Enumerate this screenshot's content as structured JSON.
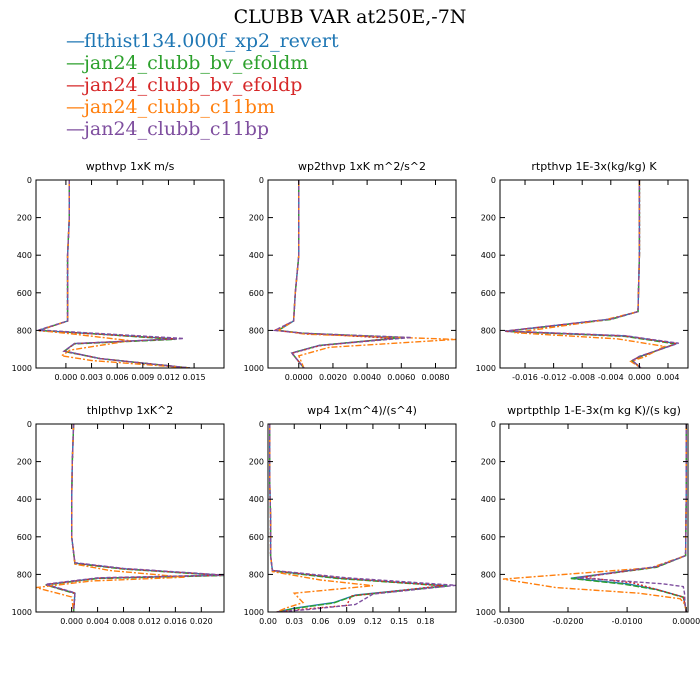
{
  "title": "CLUBB VAR at250E,-7N",
  "colors": {
    "blue": "#1f77b4",
    "green": "#2ca02c",
    "red": "#d62728",
    "orange": "#ff7f0e",
    "purple": "#7f4f9f"
  },
  "legend": [
    {
      "name": "flthist134.000f_xp2_revert",
      "color": "#1f77b4"
    },
    {
      "name": "jan24_clubb_bv_efoldm",
      "color": "#2ca02c"
    },
    {
      "name": "jan24_clubb_bv_efoldp",
      "color": "#d62728"
    },
    {
      "name": "jan24_clubb_c11bm",
      "color": "#ff7f0e"
    },
    {
      "name": "jan24_clubb_c11bp",
      "color": "#7f4f9f"
    }
  ],
  "chart_data": [
    {
      "type": "line",
      "title": "wpthvp   1xK m/s",
      "xlim": [
        -0.0035,
        0.0185
      ],
      "ylim": [
        1000,
        0
      ],
      "xticks": [
        "0.000",
        "0.003",
        "0.006",
        "0.009",
        "0.012",
        "0.015"
      ],
      "xtick_values": [
        0,
        0.003,
        0.006,
        0.009,
        0.012,
        0.015
      ],
      "yticks": [
        0,
        200,
        400,
        600,
        800,
        1000
      ],
      "series": [
        {
          "color": "#1f77b4",
          "x": [
            0.0004,
            0.0004,
            0.0002,
            0.0002,
            -0.0032,
            0.004,
            0.013,
            0.001,
            -0.0002,
            0.004,
            0.0145
          ],
          "y": [
            0,
            200,
            400,
            750,
            800,
            820,
            845,
            870,
            910,
            950,
            1000
          ]
        },
        {
          "color": "#2ca02c",
          "x": [
            0.0004,
            0.0004,
            0.0002,
            0.0002,
            -0.0032,
            0.004,
            0.0128,
            0.001,
            -0.0002,
            0.004,
            0.0145
          ],
          "y": [
            0,
            200,
            400,
            750,
            800,
            820,
            848,
            872,
            912,
            950,
            1000
          ]
        },
        {
          "color": "#d62728",
          "x": [
            0.0004,
            0.0004,
            0.0002,
            0.0002,
            -0.0032,
            0.0045,
            0.013,
            0.001,
            -0.0002,
            0.004,
            0.0145
          ],
          "y": [
            0,
            200,
            400,
            750,
            802,
            822,
            845,
            870,
            910,
            950,
            1000
          ]
        },
        {
          "color": "#ff7f0e",
          "x": [
            0.0004,
            0.0004,
            0.0002,
            0.0002,
            -0.0032,
            0.001,
            0.0075,
            0.0005,
            -0.0005,
            0.003,
            0.0145
          ],
          "y": [
            0,
            200,
            400,
            750,
            800,
            820,
            855,
            905,
            935,
            960,
            1000
          ]
        },
        {
          "color": "#7f4f9f",
          "x": [
            0.0004,
            0.0004,
            0.0002,
            0.0002,
            -0.0032,
            0.0045,
            0.0138,
            0.001,
            -0.0002,
            0.004,
            0.0145
          ],
          "y": [
            0,
            200,
            400,
            750,
            798,
            818,
            843,
            870,
            910,
            950,
            1000
          ]
        }
      ]
    },
    {
      "type": "line",
      "title": "wp2thvp   1xK m^2/s^2",
      "xlim": [
        -0.0018,
        0.0092
      ],
      "ylim": [
        1000,
        0
      ],
      "xticks": [
        "0.0000",
        "0.0020",
        "0.0040",
        "0.0060",
        "0.0080"
      ],
      "xtick_values": [
        0,
        0.002,
        0.004,
        0.006,
        0.008
      ],
      "yticks": [
        0,
        200,
        400,
        600,
        800,
        1000
      ],
      "series": [
        {
          "color": "#1f77b4",
          "x": [
            0,
            0,
            0,
            -0.0002,
            -0.0003,
            -0.0012,
            0.0002,
            0.0058,
            0.0012,
            -0.0004,
            0.0003
          ],
          "y": [
            0,
            200,
            400,
            600,
            750,
            800,
            815,
            840,
            880,
            920,
            1000
          ]
        },
        {
          "color": "#2ca02c",
          "x": [
            0,
            0,
            0,
            -0.0002,
            -0.0003,
            -0.0012,
            0.0002,
            0.0062,
            0.0012,
            -0.0004,
            0.0003
          ],
          "y": [
            0,
            200,
            400,
            600,
            750,
            800,
            815,
            838,
            880,
            920,
            1000
          ]
        },
        {
          "color": "#d62728",
          "x": [
            0,
            0,
            0,
            -0.0002,
            -0.0003,
            -0.0014,
            0.0002,
            0.0055,
            0.0012,
            -0.0004,
            0.0003
          ],
          "y": [
            0,
            200,
            400,
            600,
            750,
            800,
            815,
            842,
            882,
            922,
            1000
          ]
        },
        {
          "color": "#ff7f0e",
          "x": [
            0,
            0,
            0,
            -0.0002,
            -0.0003,
            -0.0012,
            0.0004,
            0.0092,
            0.0018,
            0.0,
            0.0003
          ],
          "y": [
            0,
            200,
            400,
            600,
            750,
            800,
            820,
            848,
            890,
            935,
            1000
          ]
        },
        {
          "color": "#7f4f9f",
          "x": [
            0,
            0,
            0,
            -0.0002,
            -0.0003,
            -0.0014,
            0.0002,
            0.0066,
            0.0012,
            -0.0004,
            0.0003
          ],
          "y": [
            0,
            200,
            400,
            600,
            750,
            800,
            815,
            838,
            880,
            920,
            1000
          ]
        }
      ]
    },
    {
      "type": "line",
      "title": "rtpthvp   1E-3x(kg/kg) K",
      "xlim": [
        -0.0195,
        0.0068
      ],
      "ylim": [
        1000,
        0
      ],
      "xticks": [
        "-0.016",
        "-0.012",
        "-0.008",
        "-0.004",
        "0.000",
        "0.004"
      ],
      "xtick_values": [
        -0.016,
        -0.012,
        -0.008,
        -0.004,
        0,
        0.004
      ],
      "yticks": [
        0,
        200,
        400,
        600,
        800,
        1000
      ],
      "series": [
        {
          "color": "#1f77b4",
          "x": [
            0,
            0,
            0,
            -0.0002,
            -0.004,
            -0.0188,
            -0.002,
            0.0052,
            0.0,
            -0.001,
            0.0002
          ],
          "y": [
            0,
            200,
            400,
            700,
            740,
            805,
            830,
            870,
            940,
            960,
            1000
          ]
        },
        {
          "color": "#2ca02c",
          "x": [
            0,
            0,
            0,
            -0.0002,
            -0.004,
            -0.0188,
            -0.002,
            0.005,
            0.0,
            -0.001,
            0.0002
          ],
          "y": [
            0,
            200,
            400,
            700,
            742,
            805,
            832,
            872,
            942,
            962,
            1000
          ]
        },
        {
          "color": "#d62728",
          "x": [
            0,
            0,
            0,
            -0.0002,
            -0.004,
            -0.0188,
            -0.002,
            0.0052,
            0.0,
            -0.001,
            0.0002
          ],
          "y": [
            0,
            200,
            400,
            700,
            740,
            805,
            830,
            870,
            940,
            960,
            1000
          ]
        },
        {
          "color": "#ff7f0e",
          "x": [
            0,
            0,
            0,
            -0.0002,
            -0.005,
            -0.0175,
            -0.003,
            0.0035,
            0.0008,
            -0.0012,
            0.0002
          ],
          "y": [
            0,
            200,
            400,
            700,
            745,
            812,
            845,
            885,
            940,
            965,
            1000
          ]
        },
        {
          "color": "#7f4f9f",
          "x": [
            0,
            0,
            0,
            -0.0002,
            -0.004,
            -0.0188,
            -0.002,
            0.0055,
            0.0,
            -0.001,
            0.0002
          ],
          "y": [
            0,
            200,
            400,
            700,
            740,
            803,
            828,
            868,
            938,
            960,
            1000
          ]
        }
      ]
    },
    {
      "type": "line",
      "title": "thlpthvp   1xK^2",
      "xlim": [
        -0.0055,
        0.0235
      ],
      "ylim": [
        1000,
        0
      ],
      "xticks": [
        "0.000",
        "0.004",
        "0.008",
        "0.012",
        "0.016",
        "0.020"
      ],
      "xtick_values": [
        0,
        0.004,
        0.008,
        0.012,
        0.016,
        0.02
      ],
      "yticks": [
        0,
        200,
        400,
        600,
        800,
        1000
      ],
      "series": [
        {
          "color": "#1f77b4",
          "x": [
            0.0003,
            0.0001,
            0,
            0,
            0.0005,
            0.008,
            0.0235,
            0.004,
            -0.004,
            0.0005,
            0.0003
          ],
          "y": [
            0,
            200,
            400,
            600,
            740,
            770,
            805,
            820,
            855,
            900,
            1000
          ]
        },
        {
          "color": "#2ca02c",
          "x": [
            0.0003,
            0.0001,
            0,
            0,
            0.0005,
            0.008,
            0.0235,
            0.004,
            -0.004,
            0.0005,
            0.0003
          ],
          "y": [
            0,
            200,
            400,
            600,
            742,
            772,
            806,
            822,
            856,
            902,
            1000
          ]
        },
        {
          "color": "#d62728",
          "x": [
            0.0003,
            0.0001,
            0,
            0,
            0.0005,
            0.008,
            0.0235,
            0.004,
            -0.004,
            0.0005,
            0.0003
          ],
          "y": [
            0,
            200,
            400,
            600,
            740,
            770,
            805,
            820,
            855,
            900,
            1000
          ]
        },
        {
          "color": "#ff7f0e",
          "x": [
            0.0003,
            0.0001,
            0,
            0,
            0.0005,
            0.006,
            0.0175,
            0.003,
            -0.0055,
            0.0,
            0.0003
          ],
          "y": [
            0,
            200,
            400,
            600,
            745,
            780,
            815,
            835,
            870,
            920,
            1000
          ]
        },
        {
          "color": "#7f4f9f",
          "x": [
            0.0003,
            0.0001,
            0,
            0,
            0.0005,
            0.008,
            0.0235,
            0.004,
            -0.004,
            0.0005,
            0.0003
          ],
          "y": [
            0,
            200,
            400,
            600,
            738,
            768,
            803,
            818,
            852,
            898,
            1000
          ]
        }
      ]
    },
    {
      "type": "line",
      "title": "wp4   1x(m^4)/(s^4)",
      "xlim": [
        0,
        0.215
      ],
      "ylim": [
        1000,
        0
      ],
      "xticks": [
        "0.00",
        "0.03",
        "0.06",
        "0.09",
        "0.12",
        "0.15",
        "0.18"
      ],
      "xtick_values": [
        0,
        0.03,
        0.06,
        0.09,
        0.12,
        0.15,
        0.18
      ],
      "yticks": [
        0,
        200,
        400,
        600,
        800,
        1000
      ],
      "series": [
        {
          "color": "#1f77b4",
          "x": [
            0.002,
            0.002,
            0.003,
            0.003,
            0.005,
            0.08,
            0.205,
            0.1,
            0.075,
            0.03,
            0.01
          ],
          "y": [
            0,
            300,
            500,
            700,
            780,
            820,
            860,
            910,
            950,
            980,
            1000
          ]
        },
        {
          "color": "#2ca02c",
          "x": [
            0.002,
            0.002,
            0.003,
            0.003,
            0.005,
            0.08,
            0.205,
            0.1,
            0.075,
            0.03,
            0.01
          ],
          "y": [
            0,
            300,
            500,
            700,
            782,
            822,
            862,
            912,
            952,
            982,
            1000
          ]
        },
        {
          "color": "#d62728",
          "x": [
            0.002,
            0.002,
            0.003,
            0.003,
            0.005,
            0.085,
            0.2,
            0.095,
            0.09,
            0.04,
            0.01
          ],
          "y": [
            0,
            300,
            500,
            700,
            780,
            820,
            860,
            915,
            965,
            985,
            1000
          ]
        },
        {
          "color": "#ff7f0e",
          "x": [
            0.002,
            0.002,
            0.003,
            0.003,
            0.005,
            0.06,
            0.12,
            0.03,
            0.04,
            0.02,
            0.01
          ],
          "y": [
            0,
            300,
            500,
            700,
            785,
            830,
            860,
            900,
            950,
            980,
            1000
          ]
        },
        {
          "color": "#7f4f9f",
          "x": [
            0.002,
            0.002,
            0.003,
            0.003,
            0.005,
            0.09,
            0.215,
            0.12,
            0.1,
            0.05,
            0.01
          ],
          "y": [
            0,
            300,
            500,
            700,
            778,
            818,
            858,
            905,
            960,
            985,
            1000
          ]
        }
      ]
    },
    {
      "type": "line",
      "title": "wprtpthlp   1-E-3x(m kg K)/(s kg)",
      "xlim": [
        -0.0315,
        0.0003
      ],
      "ylim": [
        1000,
        0
      ],
      "xticks": [
        "-0.0300",
        "-0.0200",
        "-0.0100",
        "0.0000"
      ],
      "xtick_values": [
        -0.03,
        -0.02,
        -0.01,
        0
      ],
      "yticks": [
        0,
        200,
        400,
        600,
        800,
        1000
      ],
      "series": [
        {
          "color": "#1f77b4",
          "x": [
            0,
            0,
            0,
            -0.0001,
            -0.005,
            -0.0195,
            -0.01,
            -0.005,
            -0.0005,
            -0.0002,
            0
          ],
          "y": [
            0,
            200,
            400,
            700,
            760,
            820,
            850,
            880,
            920,
            960,
            1000
          ]
        },
        {
          "color": "#2ca02c",
          "x": [
            0,
            0,
            0,
            -0.0001,
            -0.005,
            -0.0195,
            -0.0105,
            -0.005,
            -0.0005,
            -0.0002,
            0
          ],
          "y": [
            0,
            200,
            400,
            700,
            762,
            822,
            852,
            882,
            922,
            962,
            1000
          ]
        },
        {
          "color": "#d62728",
          "x": [
            0,
            0,
            0,
            -0.0001,
            -0.005,
            -0.0175,
            -0.009,
            -0.005,
            -0.0005,
            -0.0002,
            0
          ],
          "y": [
            0,
            200,
            400,
            700,
            760,
            815,
            845,
            880,
            920,
            960,
            1000
          ]
        },
        {
          "color": "#ff7f0e",
          "x": [
            0,
            0,
            0,
            -0.0001,
            -0.006,
            -0.031,
            -0.022,
            -0.008,
            -0.001,
            -0.0002,
            0
          ],
          "y": [
            0,
            200,
            400,
            700,
            765,
            825,
            870,
            900,
            930,
            960,
            1000
          ]
        },
        {
          "color": "#7f4f9f",
          "x": [
            0,
            0,
            0,
            -0.0001,
            -0.005,
            -0.0185,
            -0.004,
            -0.0005,
            -0.0003,
            -0.0002,
            0
          ],
          "y": [
            0,
            200,
            400,
            700,
            758,
            818,
            850,
            865,
            900,
            950,
            1000
          ]
        }
      ]
    }
  ]
}
